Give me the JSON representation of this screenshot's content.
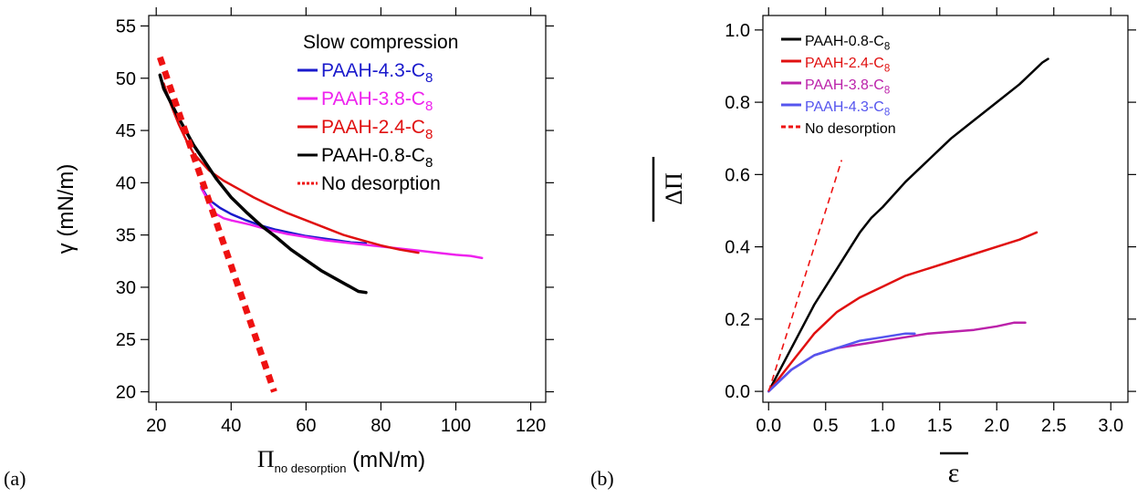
{
  "panel_labels": {
    "a": "(a)",
    "b": "(b)"
  },
  "chart_data": [
    {
      "type": "line",
      "panel": "(a)",
      "xlabel": {
        "symbol": "Π",
        "subscript": "no desorption",
        "unit": "(mN/m)"
      },
      "ylabel": "γ (mN/m)",
      "xlim": [
        18,
        124
      ],
      "ylim": [
        19,
        56
      ],
      "xticks": [
        20,
        40,
        60,
        80,
        100,
        120
      ],
      "yticks": [
        20,
        25,
        30,
        35,
        40,
        45,
        50,
        55
      ],
      "grid": false,
      "legend_title": "Slow compression",
      "legend_position": "top-right",
      "series": [
        {
          "name": "PAAH-4.3-C",
          "sub": "8",
          "color": "#1a1acc",
          "width": 2.5,
          "style": "solid",
          "x": [
            32,
            34,
            37,
            40,
            44,
            48,
            52,
            56,
            60,
            64,
            68,
            72,
            76
          ],
          "y": [
            39.6,
            38.4,
            37.6,
            37.0,
            36.4,
            35.9,
            35.5,
            35.2,
            34.9,
            34.7,
            34.5,
            34.3,
            34.2
          ]
        },
        {
          "name": "PAAH-3.8-C",
          "sub": "8",
          "color": "#ee22ee",
          "width": 2.5,
          "style": "solid",
          "x": [
            32,
            34,
            36,
            38,
            40,
            45,
            50,
            55,
            60,
            65,
            70,
            75,
            80,
            85,
            90,
            95,
            100,
            104,
            107
          ],
          "y": [
            39.5,
            38.2,
            37.0,
            36.6,
            36.4,
            36.0,
            35.5,
            35.1,
            34.8,
            34.5,
            34.3,
            34.1,
            33.9,
            33.7,
            33.5,
            33.3,
            33.1,
            33.0,
            32.8
          ]
        },
        {
          "name": "PAAH-2.4-C",
          "sub": "8",
          "color": "#e01010",
          "width": 2.5,
          "style": "solid",
          "x": [
            22,
            24,
            26,
            28,
            30,
            34,
            38,
            42,
            46,
            50,
            55,
            60,
            65,
            70,
            75,
            80,
            85,
            90
          ],
          "y": [
            49.5,
            47.4,
            45.6,
            44.1,
            42.8,
            41.2,
            40.2,
            39.4,
            38.6,
            37.9,
            37.1,
            36.4,
            35.7,
            35.0,
            34.5,
            34.0,
            33.6,
            33.3
          ]
        },
        {
          "name": "PAAH-0.8-C",
          "sub": "8",
          "color": "#000000",
          "width": 3.5,
          "style": "solid",
          "x": [
            21,
            22,
            24,
            26,
            28,
            30,
            33,
            36,
            40,
            44,
            48,
            52,
            56,
            60,
            64,
            68,
            72,
            74,
            76
          ],
          "y": [
            50.3,
            49.0,
            47.6,
            46.2,
            44.9,
            43.6,
            42.0,
            40.4,
            38.6,
            37.2,
            35.9,
            34.8,
            33.6,
            32.6,
            31.6,
            30.8,
            30.0,
            29.6,
            29.5
          ]
        },
        {
          "name": "No desorption",
          "color": "#ee1111",
          "width": 7,
          "style": "dotted",
          "x": [
            21,
            51.5
          ],
          "y": [
            52,
            20
          ]
        }
      ]
    },
    {
      "type": "line",
      "panel": "(b)",
      "xlabel": "ε",
      "ylabel": "ΔΠ",
      "xlim": [
        -0.05,
        3.15
      ],
      "ylim": [
        -0.03,
        1.04
      ],
      "xticks": [
        0.0,
        0.5,
        1.0,
        1.5,
        2.0,
        2.5,
        3.0
      ],
      "yticks": [
        0.0,
        0.2,
        0.4,
        0.6,
        0.8,
        1.0
      ],
      "xtick_labels": [
        "0.0",
        "0.5",
        "1.0",
        "1.5",
        "2.0",
        "2.5",
        "3.0"
      ],
      "ytick_labels": [
        "0.0",
        "0.2",
        "0.4",
        "0.6",
        "0.8",
        "1.0"
      ],
      "grid": false,
      "legend_position": "top-left",
      "series": [
        {
          "name": "PAAH-0.8-C",
          "sub": "8",
          "color": "#000000",
          "width": 2.5,
          "style": "solid",
          "x": [
            0.0,
            0.1,
            0.2,
            0.3,
            0.4,
            0.5,
            0.6,
            0.7,
            0.8,
            0.9,
            1.0,
            1.2,
            1.4,
            1.6,
            1.8,
            2.0,
            2.2,
            2.4,
            2.45
          ],
          "y": [
            0.0,
            0.06,
            0.12,
            0.18,
            0.24,
            0.29,
            0.34,
            0.39,
            0.44,
            0.48,
            0.51,
            0.58,
            0.64,
            0.7,
            0.75,
            0.8,
            0.85,
            0.91,
            0.92
          ]
        },
        {
          "name": "PAAH-2.4-C",
          "sub": "8",
          "color": "#e01010",
          "width": 2.5,
          "style": "solid",
          "x": [
            0.0,
            0.1,
            0.2,
            0.3,
            0.4,
            0.5,
            0.6,
            0.8,
            1.0,
            1.2,
            1.4,
            1.6,
            1.8,
            2.0,
            2.2,
            2.35
          ],
          "y": [
            0.0,
            0.04,
            0.08,
            0.12,
            0.16,
            0.19,
            0.22,
            0.26,
            0.29,
            0.32,
            0.34,
            0.36,
            0.38,
            0.4,
            0.42,
            0.44
          ]
        },
        {
          "name": "PAAH-3.8-C",
          "sub": "8",
          "color": "#bb22aa",
          "width": 2.5,
          "style": "solid",
          "x": [
            0.0,
            0.1,
            0.2,
            0.3,
            0.4,
            0.6,
            0.8,
            1.0,
            1.2,
            1.4,
            1.6,
            1.8,
            2.0,
            2.15,
            2.25
          ],
          "y": [
            0.0,
            0.03,
            0.06,
            0.08,
            0.1,
            0.12,
            0.13,
            0.14,
            0.15,
            0.16,
            0.165,
            0.17,
            0.18,
            0.19,
            0.19
          ]
        },
        {
          "name": "PAAH-4.3-C",
          "sub": "8",
          "color": "#5555ee",
          "width": 2.5,
          "style": "solid",
          "x": [
            0.0,
            0.1,
            0.2,
            0.3,
            0.4,
            0.5,
            0.6,
            0.8,
            1.0,
            1.2,
            1.28
          ],
          "y": [
            0.0,
            0.03,
            0.06,
            0.08,
            0.1,
            0.11,
            0.12,
            0.14,
            0.15,
            0.16,
            0.16
          ]
        },
        {
          "name": "No desorption",
          "color": "#ee1111",
          "width": 1.6,
          "style": "dashed",
          "x": [
            0.0,
            0.64
          ],
          "y": [
            0.0,
            0.64
          ]
        }
      ]
    }
  ]
}
